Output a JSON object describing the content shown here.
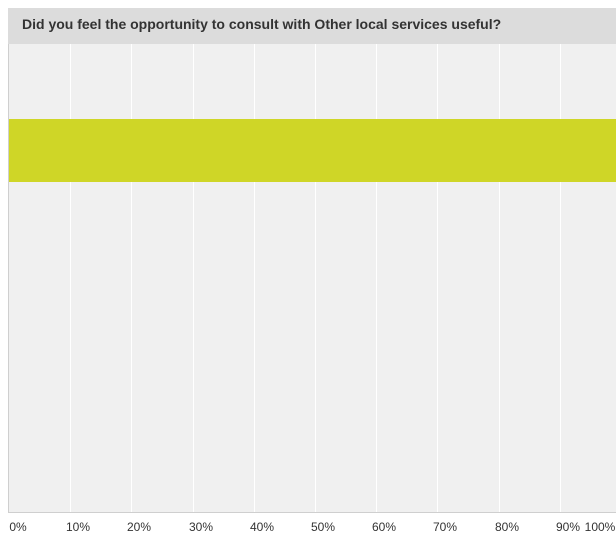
{
  "question": {
    "title": "Did you feel the opportunity to consult with Other local services useful?"
  },
  "colors": {
    "bar": "#cfd627",
    "plot_background": "#f0f0f0",
    "header_background": "#dcdcdc",
    "gridline": "#ffffff"
  },
  "chart_data": {
    "type": "bar",
    "orientation": "horizontal",
    "title": "Did you feel the opportunity to consult with Other local services useful?",
    "categories": [
      ""
    ],
    "values": [
      100
    ],
    "xlim": [
      0,
      100
    ],
    "x_unit": "%",
    "tick_labels": [
      "0%",
      "10%",
      "20%",
      "30%",
      "40%",
      "50%",
      "60%",
      "70%",
      "80%",
      "90%",
      "100%"
    ],
    "grid": true,
    "legend": "none"
  }
}
